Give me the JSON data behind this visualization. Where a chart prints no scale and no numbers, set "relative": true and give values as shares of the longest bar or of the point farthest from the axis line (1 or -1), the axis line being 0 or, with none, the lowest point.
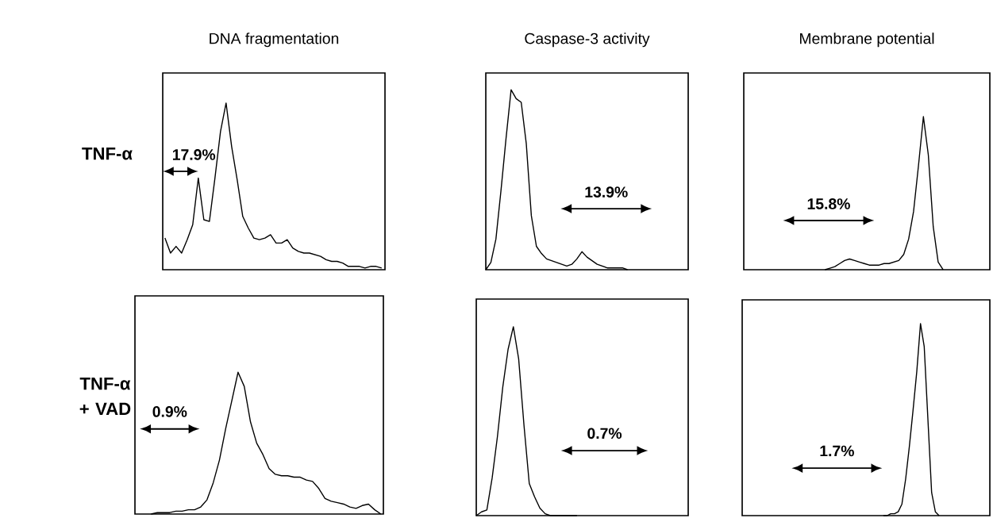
{
  "chart_data": [
    {
      "type": "line",
      "relative": true,
      "title": "DNA fragmentation",
      "ylabel": "TNF-α",
      "annotations": [
        "17.9%"
      ],
      "tick_labels": false,
      "color": "#000000",
      "categories": [
        null,
        null,
        null,
        null,
        null,
        null,
        null,
        null,
        null,
        null,
        null,
        null,
        null,
        null,
        null,
        null,
        null,
        null,
        null,
        null,
        null,
        null,
        null,
        null,
        null,
        null,
        null,
        null,
        null,
        null,
        null,
        null,
        null,
        null,
        null,
        null,
        null,
        null,
        null,
        null
      ],
      "values": [
        0.19,
        0.1,
        0.14,
        0.1,
        0.18,
        0.27,
        0.55,
        0.3,
        0.29,
        0.55,
        0.83,
        1,
        0.74,
        0.54,
        0.32,
        0.25,
        0.19,
        0.18,
        0.19,
        0.21,
        0.16,
        0.16,
        0.18,
        0.13,
        0.11,
        0.1,
        0.1,
        0.09,
        0.08,
        0.06,
        0.05,
        0.05,
        0.04,
        0.02,
        0.02,
        0.02,
        0.01,
        0.02,
        0.02,
        0.01
      ]
    },
    {
      "type": "line",
      "relative": true,
      "title": "Caspase-3 activity",
      "annotations": [
        "13.9%"
      ],
      "tick_labels": false,
      "color": "#000000",
      "categories": [
        null,
        null,
        null,
        null,
        null,
        null,
        null,
        null,
        null,
        null,
        null,
        null,
        null,
        null,
        null,
        null,
        null,
        null,
        null,
        null,
        null,
        null,
        null,
        null,
        null,
        null,
        null,
        null,
        null
      ],
      "values": [
        0,
        0.04,
        0.17,
        0.44,
        0.73,
        1,
        0.95,
        0.93,
        0.7,
        0.3,
        0.13,
        0.09,
        0.06,
        0.05,
        0.04,
        0.03,
        0.02,
        0.03,
        0.06,
        0.1,
        0.07,
        0.05,
        0.03,
        0.02,
        0.01,
        0.01,
        0.01,
        0.01,
        0
      ]
    },
    {
      "type": "line",
      "relative": true,
      "title": "Membrane potential",
      "annotations": [
        "15.8%"
      ],
      "tick_labels": false,
      "color": "#000000",
      "categories": [
        null,
        null,
        null,
        null,
        null,
        null,
        null,
        null,
        null,
        null,
        null,
        null,
        null,
        null,
        null,
        null,
        null,
        null,
        null,
        null,
        null,
        null,
        null,
        null,
        null
      ],
      "values": [
        0,
        0.01,
        0.02,
        0.04,
        0.06,
        0.07,
        0.06,
        0.05,
        0.04,
        0.03,
        0.03,
        0.03,
        0.04,
        0.04,
        0.05,
        0.06,
        0.1,
        0.2,
        0.38,
        0.68,
        1,
        0.75,
        0.28,
        0.05,
        0
      ]
    },
    {
      "type": "line",
      "relative": true,
      "ylabel": "TNF-α + VAD",
      "annotations": [
        "0.9%"
      ],
      "tick_labels": false,
      "color": "#000000",
      "categories": [
        null,
        null,
        null,
        null,
        null,
        null,
        null,
        null,
        null,
        null,
        null,
        null,
        null,
        null,
        null,
        null,
        null,
        null,
        null,
        null,
        null,
        null,
        null,
        null,
        null,
        null,
        null,
        null,
        null,
        null,
        null,
        null,
        null,
        null,
        null,
        null,
        null,
        null
      ],
      "values": [
        0,
        0.01,
        0.01,
        0.01,
        0.02,
        0.02,
        0.03,
        0.03,
        0.05,
        0.1,
        0.22,
        0.38,
        0.6,
        0.8,
        1,
        0.9,
        0.65,
        0.5,
        0.42,
        0.32,
        0.28,
        0.27,
        0.27,
        0.26,
        0.26,
        0.24,
        0.23,
        0.18,
        0.11,
        0.09,
        0.08,
        0.07,
        0.05,
        0.04,
        0.06,
        0.07,
        0.03,
        0
      ]
    },
    {
      "type": "line",
      "relative": true,
      "annotations": [
        "0.7%"
      ],
      "tick_labels": false,
      "color": "#000000",
      "categories": [
        null,
        null,
        null,
        null,
        null,
        null,
        null,
        null,
        null,
        null,
        null,
        null,
        null,
        null,
        null,
        null,
        null,
        null,
        null,
        null
      ],
      "values": [
        0,
        0.02,
        0.03,
        0.2,
        0.42,
        0.68,
        0.88,
        1,
        0.83,
        0.48,
        0.17,
        0.1,
        0.04,
        0.01,
        0,
        0,
        0,
        0,
        0,
        0
      ]
    },
    {
      "type": "line",
      "relative": true,
      "annotations": [
        "1.7%"
      ],
      "tick_labels": false,
      "color": "#000000",
      "categories": [
        null,
        null,
        null,
        null,
        null,
        null,
        null,
        null,
        null,
        null,
        null,
        null,
        null,
        null,
        null,
        null
      ],
      "values": [
        0,
        0,
        0.01,
        0.01,
        0.02,
        0.06,
        0.19,
        0.36,
        0.55,
        0.75,
        1,
        0.88,
        0.5,
        0.12,
        0.02,
        0
      ]
    }
  ]
}
